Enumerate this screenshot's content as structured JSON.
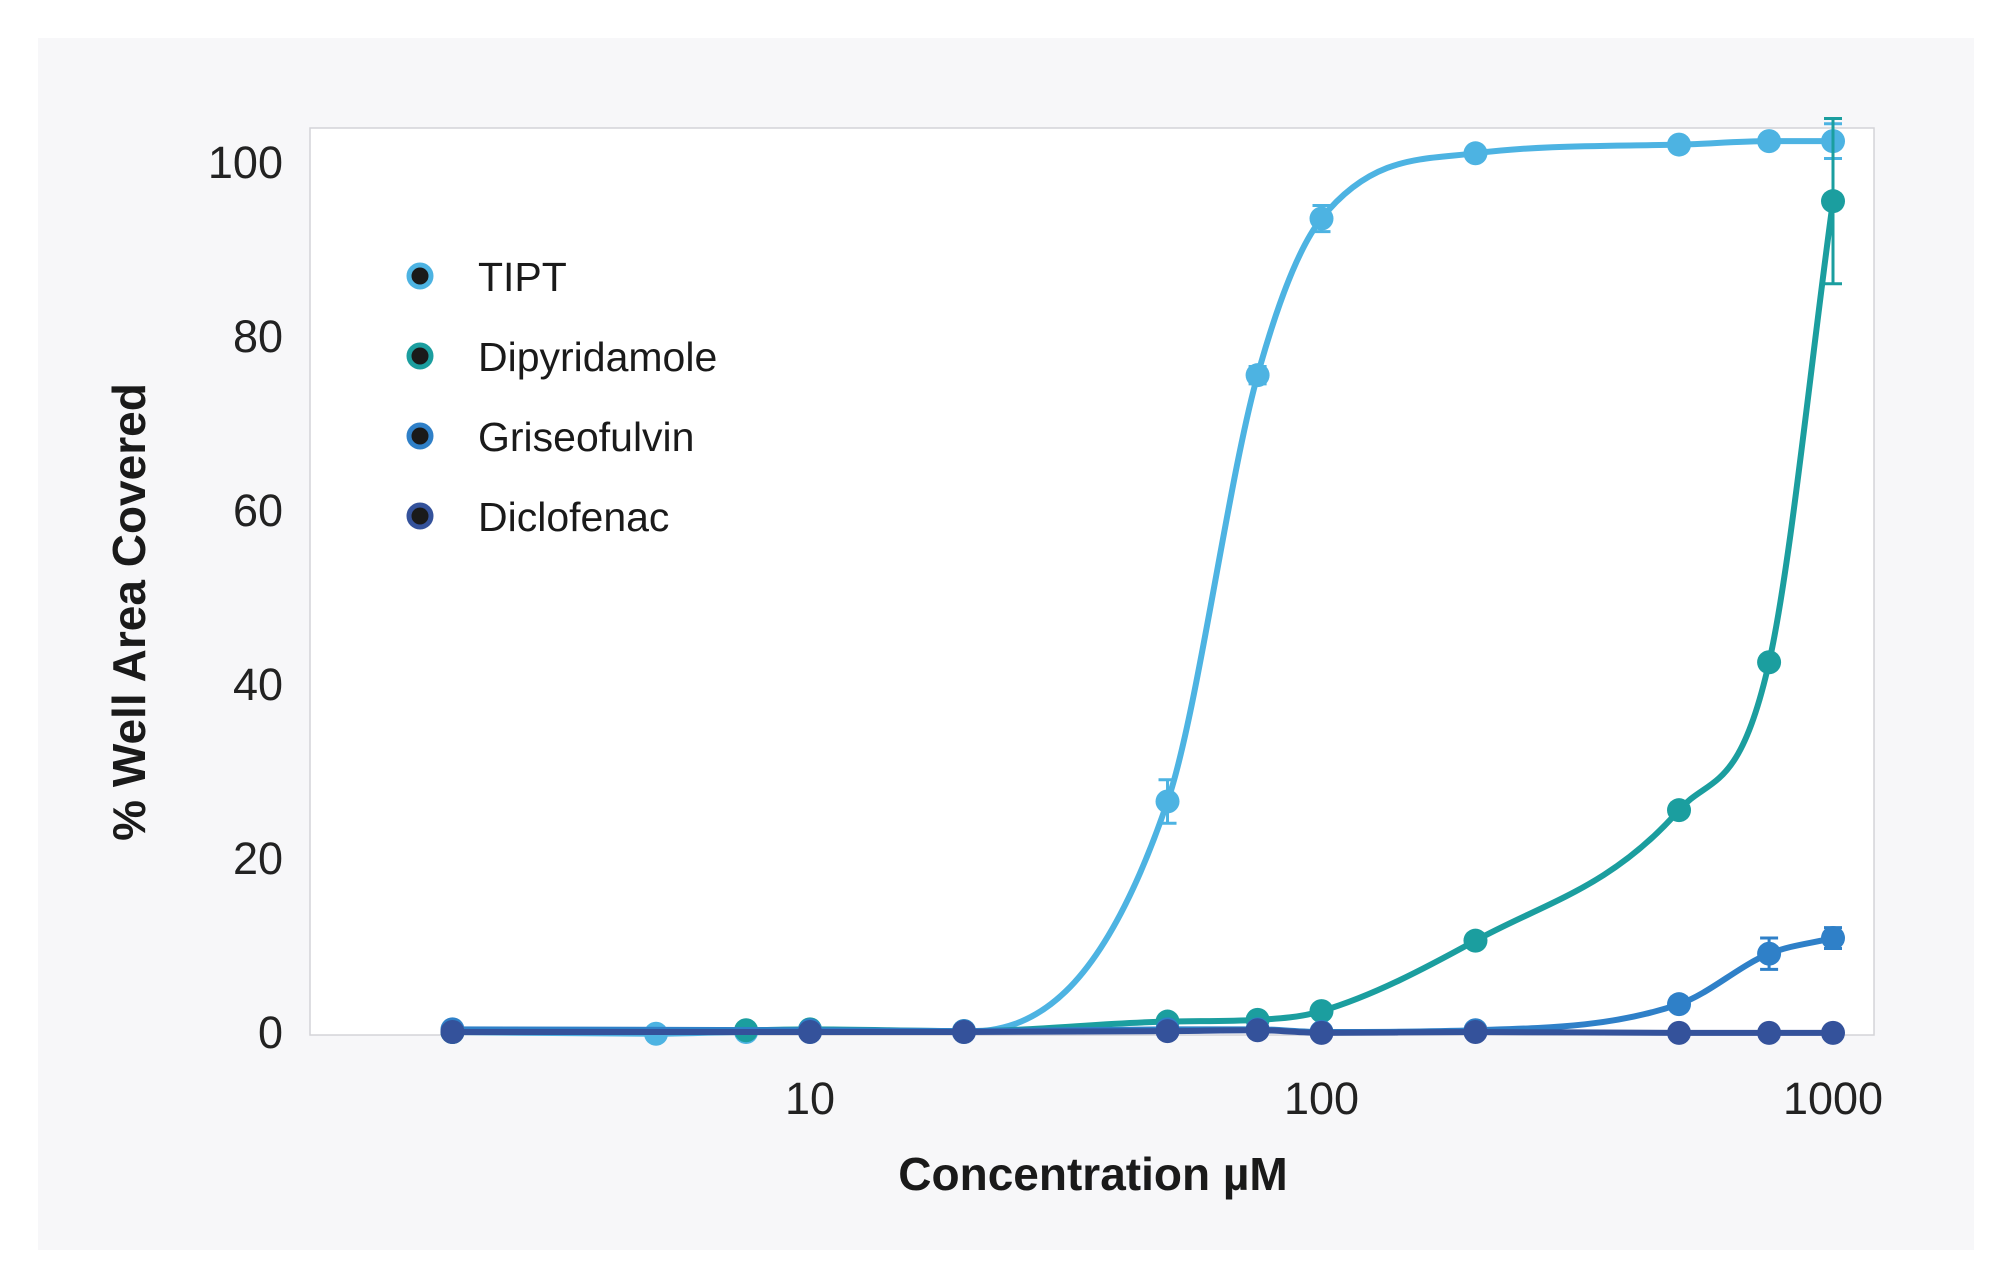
{
  "chart_data": {
    "type": "line",
    "title": "",
    "xlabel": "Concentration µM",
    "ylabel": "% Well Area Covered",
    "xscale": "log",
    "xlim": [
      1.5,
      1150
    ],
    "ylim": [
      -1,
      105
    ],
    "xticks": [
      10,
      100,
      1000
    ],
    "xtick_labels": [
      "10",
      "100",
      "1000"
    ],
    "yticks": [
      0,
      20,
      40,
      60,
      80,
      100
    ],
    "ytick_labels": [
      "0",
      "20",
      "40",
      "60",
      "80",
      "100"
    ],
    "grid": false,
    "legend_position": "top-left",
    "series": [
      {
        "name": "TIPT",
        "color": "#4db3e2",
        "x": [
          2,
          5,
          7.5,
          10,
          20,
          50,
          75,
          100,
          200,
          500,
          750,
          1000
        ],
        "y": [
          0,
          -0.2,
          0,
          0,
          0,
          26.5,
          75.5,
          93.5,
          101,
          102,
          102.4,
          102.4
        ],
        "err": [
          0,
          0,
          0,
          0,
          0,
          2.5,
          1,
          1.5,
          0.5,
          0.5,
          0.5,
          2
        ]
      },
      {
        "name": "Dipyridamole",
        "color": "#1b9e9f",
        "x": [
          2,
          7.5,
          10,
          20,
          50,
          75,
          100,
          200,
          500,
          750,
          1000
        ],
        "y": [
          0,
          0.2,
          0.3,
          0.1,
          1.2,
          1.4,
          2.4,
          10.5,
          25.5,
          42.5,
          95.5
        ],
        "err": [
          0,
          0,
          0,
          0,
          0.3,
          0.3,
          0.5,
          0.5,
          0.7,
          0.7,
          9.5
        ]
      },
      {
        "name": "Griseofulvin",
        "color": "#2f80c8",
        "x": [
          2,
          10,
          20,
          50,
          75,
          100,
          200,
          500,
          750,
          1000
        ],
        "y": [
          0.3,
          0.2,
          0.1,
          0.3,
          0.3,
          0,
          0.2,
          3.2,
          9,
          10.8
        ],
        "err": [
          0,
          0,
          0,
          0,
          0,
          0,
          0,
          0.5,
          1.8,
          1.2
        ]
      },
      {
        "name": "Diclofenac",
        "color": "#34529b",
        "x": [
          2,
          10,
          20,
          50,
          75,
          100,
          200,
          500,
          750,
          1000
        ],
        "y": [
          0,
          0,
          0,
          0.1,
          0.2,
          -0.1,
          0,
          -0.1,
          -0.1,
          -0.1
        ],
        "err": [
          0,
          0,
          0,
          0,
          0,
          0,
          0,
          0,
          0,
          0
        ]
      }
    ]
  }
}
